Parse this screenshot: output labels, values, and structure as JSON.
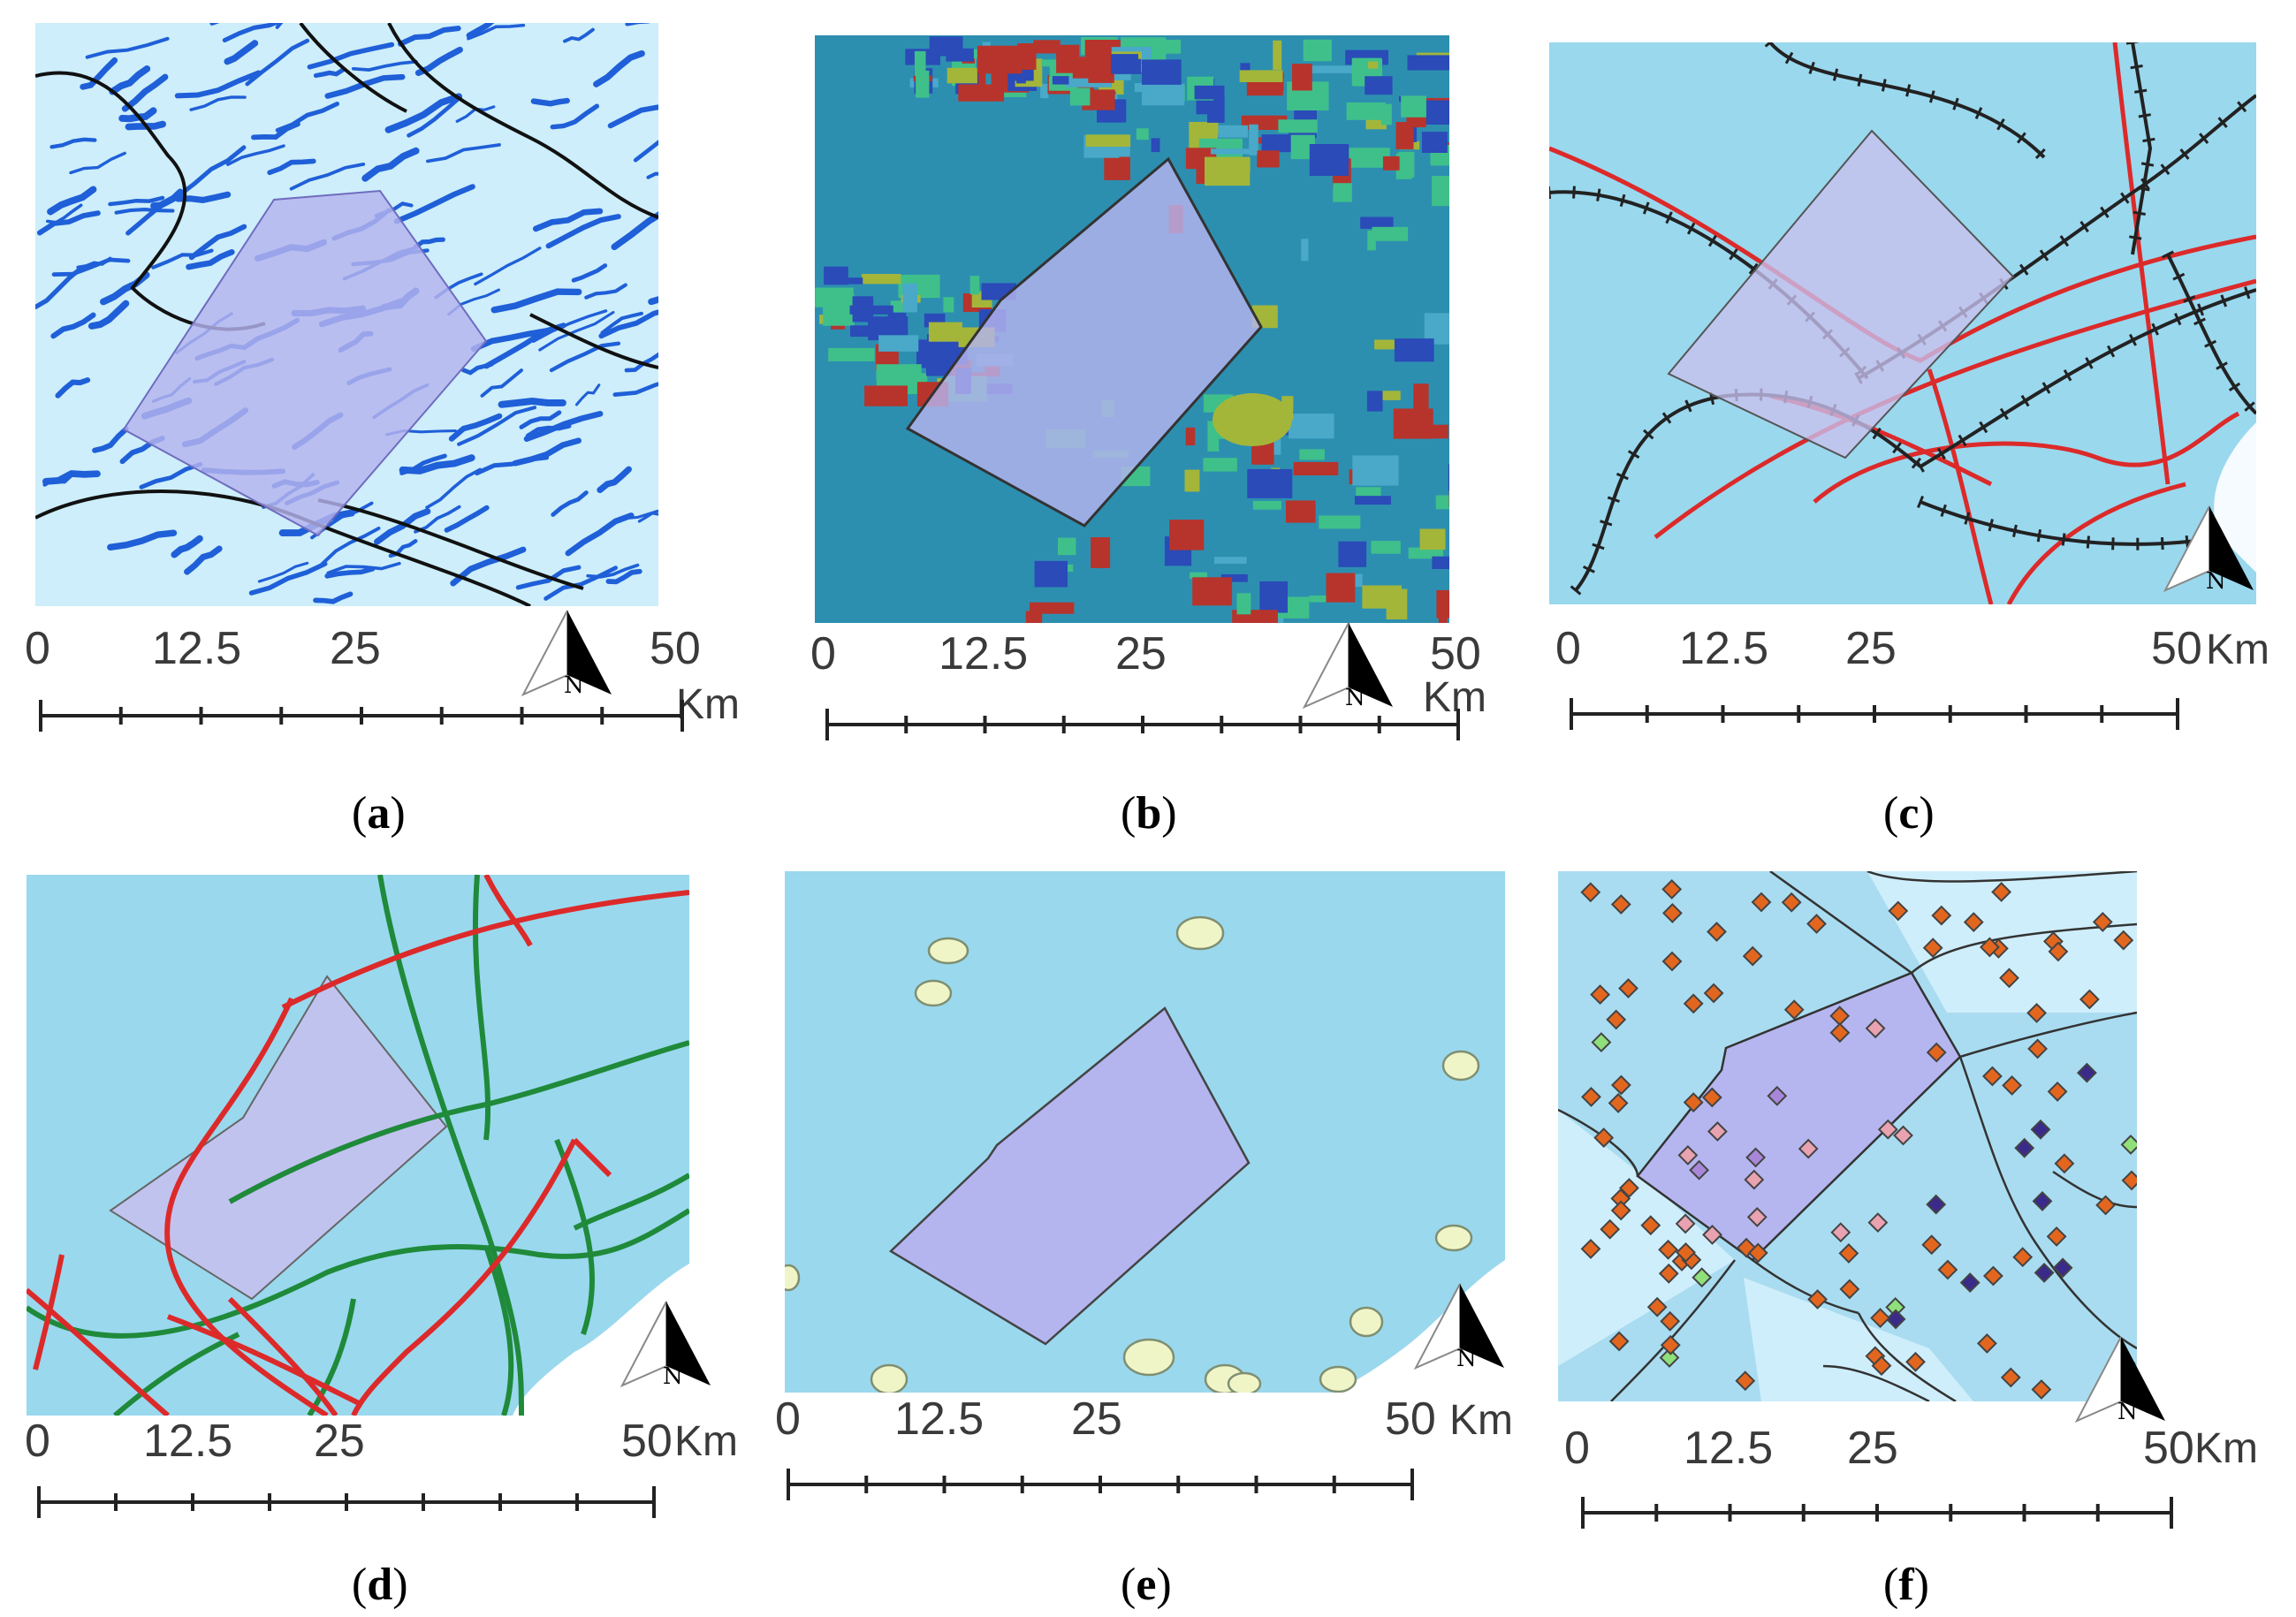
{
  "scale_labels": [
    "0",
    "12.5",
    "25",
    "50"
  ],
  "unit_label": "Km",
  "north_label": "N",
  "colors": {
    "study_area": "#b5b3ee",
    "water_bg": "#9ad8ee",
    "river": "#1f5fd8",
    "road_red": "#dc2a2a",
    "road_green": "#1f8a3a",
    "railway": "#222222",
    "point_orange": "#e3661f",
    "point_purple": "#3a2a8a",
    "point_green": "#8fe07a",
    "point_pink": "#e8a2b0",
    "settlement": "#f0f5c8"
  },
  "panels": [
    {
      "id": "a",
      "caption_open": "(",
      "caption_letter": "a",
      "caption_close": ")",
      "layer": "rivers"
    },
    {
      "id": "b",
      "caption_open": "(",
      "caption_letter": "b",
      "caption_close": ")",
      "layer": "land-cover"
    },
    {
      "id": "c",
      "caption_open": "(",
      "caption_letter": "c",
      "caption_close": ")",
      "layer": "railways-roads"
    },
    {
      "id": "d",
      "caption_open": "(",
      "caption_letter": "d",
      "caption_close": ")",
      "layer": "roads"
    },
    {
      "id": "e",
      "caption_open": "(",
      "caption_letter": "e",
      "caption_close": ")",
      "layer": "settlements"
    },
    {
      "id": "f",
      "caption_open": "(",
      "caption_letter": "f",
      "caption_close": ")",
      "layer": "points"
    }
  ]
}
